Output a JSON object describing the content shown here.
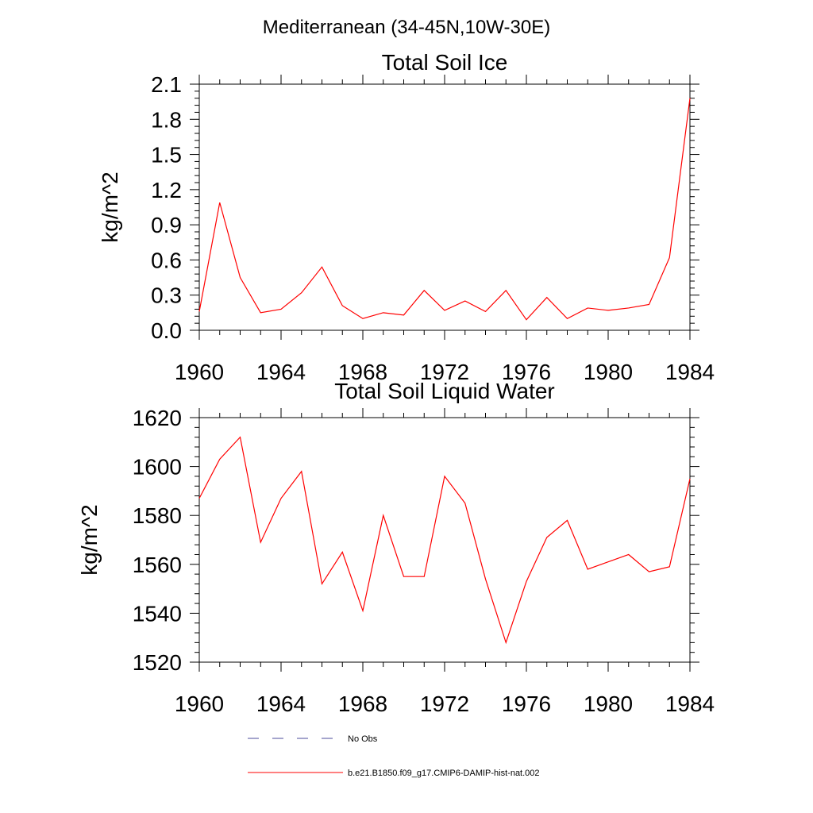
{
  "page_title": "Mediterranean (34-45N,10W-30E)",
  "colors": {
    "model_line": "#ff0000",
    "obs_line": "#4b4b9b",
    "axes": "#000000"
  },
  "legend": {
    "entries": [
      {
        "label": "No Obs",
        "style": "dashed"
      },
      {
        "label": "b.e21.B1850.f09_g17.CMIP6-DAMIP-hist-nat.002",
        "style": "solid"
      }
    ]
  },
  "chart_data": [
    {
      "type": "line",
      "title": "Total Soil Ice",
      "ylabel": "kg/m^2",
      "xlabel": "",
      "xlim": [
        1960,
        1984
      ],
      "ylim": [
        0,
        2.1
      ],
      "x_ticks": [
        "1960",
        "1964",
        "1968",
        "1972",
        "1976",
        "1980",
        "1984"
      ],
      "y_ticks": [
        "0.0",
        "0.3",
        "0.6",
        "0.9",
        "1.2",
        "1.5",
        "1.8",
        "2.1"
      ],
      "grid": false,
      "x": [
        1960,
        1961,
        1962,
        1963,
        1964,
        1965,
        1966,
        1967,
        1968,
        1969,
        1970,
        1971,
        1972,
        1973,
        1974,
        1975,
        1976,
        1977,
        1978,
        1979,
        1980,
        1981,
        1982,
        1983,
        1984
      ],
      "series": [
        {
          "name": "b.e21.B1850.f09_g17.CMIP6-DAMIP-hist-nat.002",
          "values": [
            0.16,
            1.09,
            0.45,
            0.15,
            0.18,
            0.32,
            0.54,
            0.21,
            0.1,
            0.15,
            0.13,
            0.34,
            0.17,
            0.25,
            0.16,
            0.34,
            0.09,
            0.28,
            0.1,
            0.19,
            0.17,
            0.19,
            0.22,
            0.62,
            1.98
          ]
        }
      ]
    },
    {
      "type": "line",
      "title": "Total Soil Liquid Water",
      "ylabel": "kg/m^2",
      "xlabel": "",
      "xlim": [
        1960,
        1984
      ],
      "ylim": [
        1520,
        1620
      ],
      "x_ticks": [
        "1960",
        "1964",
        "1968",
        "1972",
        "1976",
        "1980",
        "1984"
      ],
      "y_ticks": [
        "1520",
        "1540",
        "1560",
        "1580",
        "1600",
        "1620"
      ],
      "grid": false,
      "x": [
        1960,
        1961,
        1962,
        1963,
        1964,
        1965,
        1966,
        1967,
        1968,
        1969,
        1970,
        1971,
        1972,
        1973,
        1974,
        1975,
        1976,
        1977,
        1978,
        1979,
        1980,
        1981,
        1982,
        1983,
        1984
      ],
      "series": [
        {
          "name": "b.e21.B1850.f09_g17.CMIP6-DAMIP-hist-nat.002",
          "values": [
            1587,
            1603,
            1612,
            1569,
            1587,
            1598,
            1552,
            1565,
            1541,
            1580,
            1555,
            1555,
            1596,
            1585,
            1554,
            1528,
            1553,
            1571,
            1578,
            1558,
            1561,
            1564,
            1557,
            1559,
            1595
          ]
        }
      ]
    }
  ]
}
